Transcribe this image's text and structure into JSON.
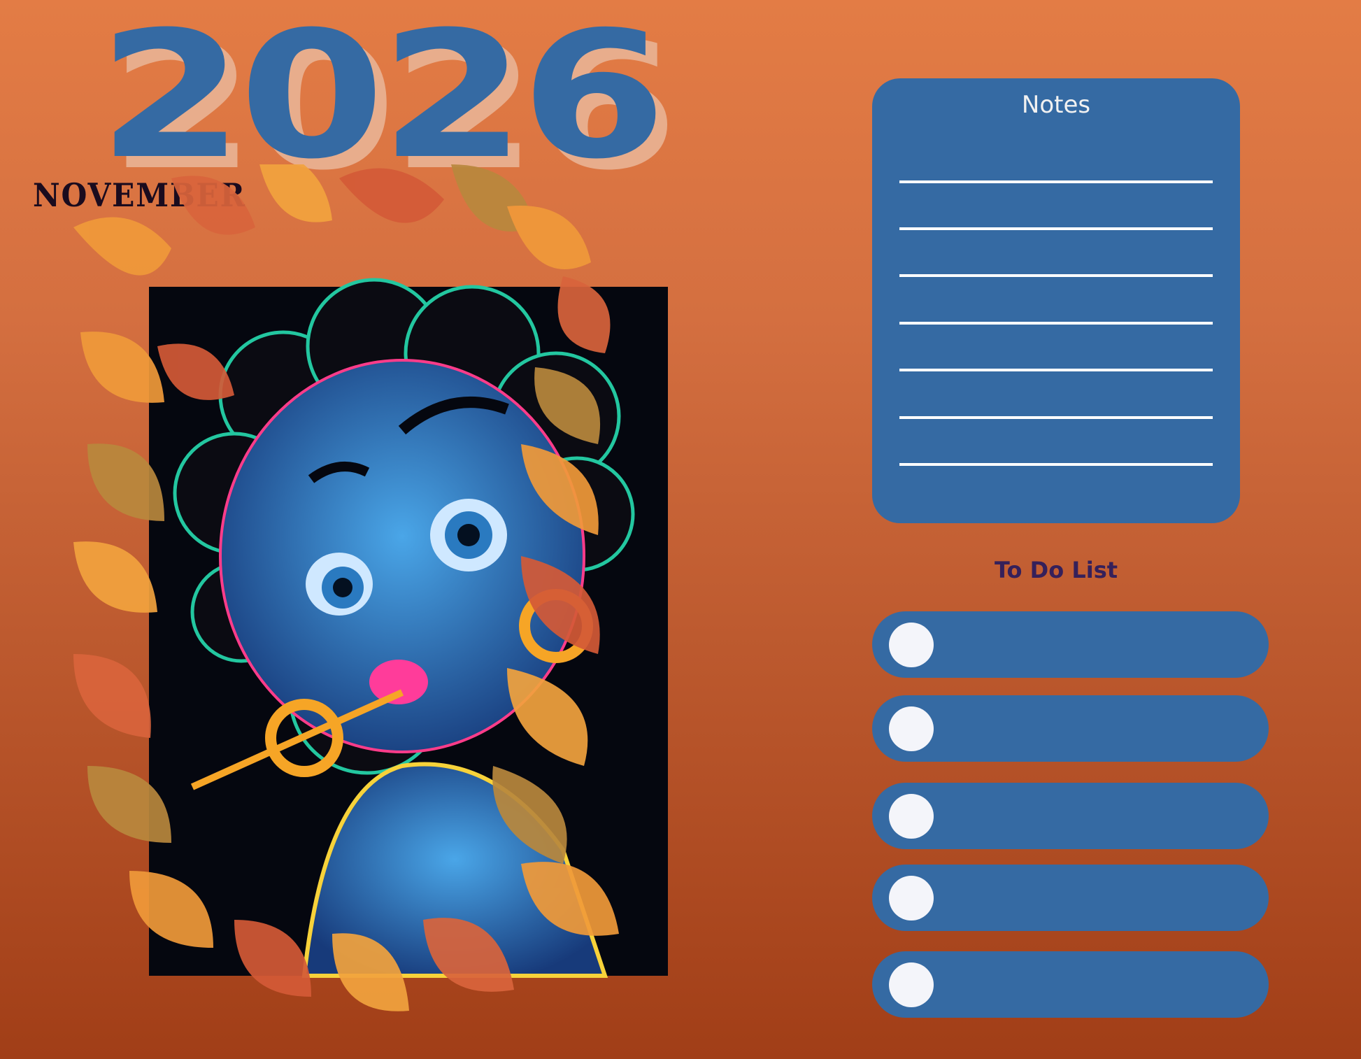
{
  "year": "2026",
  "month": "NOVEMBER",
  "notes": {
    "title": "Notes",
    "line_count": 7
  },
  "todo": {
    "title": "To Do List",
    "items": [
      "",
      "",
      "",
      "",
      ""
    ]
  },
  "colors": {
    "background_top": "#e37c45",
    "background_bottom": "#a13e17",
    "panel_blue": "#356aa3",
    "year_shadow": "#e8ad8c",
    "todo_title": "#35205a"
  }
}
